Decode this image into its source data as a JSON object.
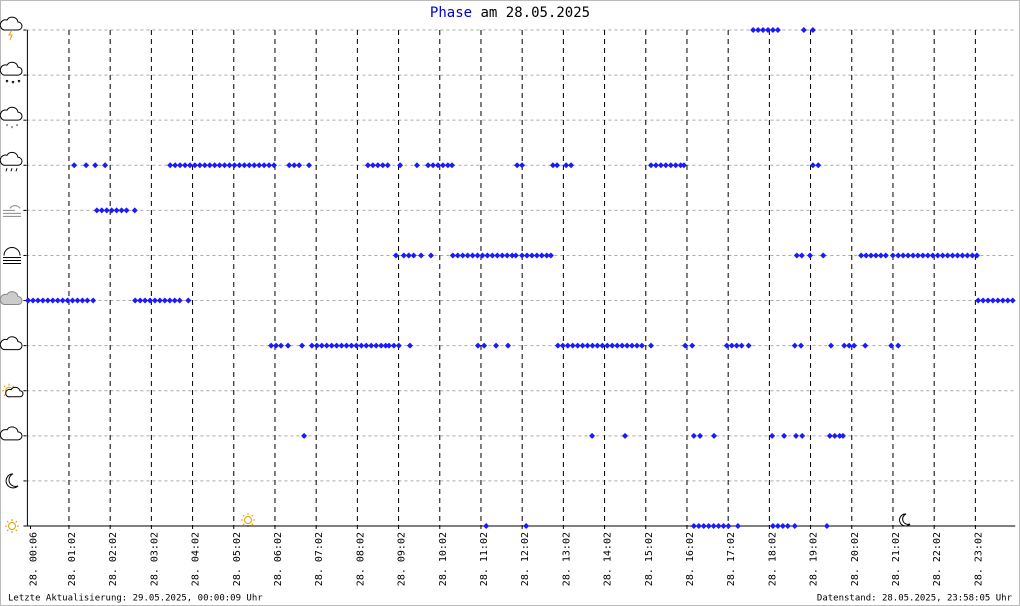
{
  "chart_data": {
    "type": "scatter",
    "title_parts": [
      "Phase",
      "am 28.05.2025"
    ],
    "footer_left": "Letzte Aktualisierung: 29.05.2025, 00:00:09 Uhr",
    "footer_right": "Datenstand: 28.05.2025, 23:58:05 Uhr",
    "xlim": [
      0,
      24
    ],
    "ylim": [
      0,
      11
    ],
    "xticks": [
      {
        "value": 0.1,
        "label": "28. 00:06"
      },
      {
        "value": 1.0333,
        "label": "28. 01:02"
      },
      {
        "value": 2.0333,
        "label": "28. 02:02"
      },
      {
        "value": 3.0333,
        "label": "28. 03:02"
      },
      {
        "value": 4.0333,
        "label": "28. 04:02"
      },
      {
        "value": 5.0333,
        "label": "28. 05:02"
      },
      {
        "value": 6.0333,
        "label": "28. 06:02"
      },
      {
        "value": 7.0333,
        "label": "28. 07:02"
      },
      {
        "value": 8.0333,
        "label": "28. 08:02"
      },
      {
        "value": 9.0333,
        "label": "28. 09:02"
      },
      {
        "value": 10.0333,
        "label": "28. 10:02"
      },
      {
        "value": 11.0333,
        "label": "28. 11:02"
      },
      {
        "value": 12.0333,
        "label": "28. 12:02"
      },
      {
        "value": 13.0333,
        "label": "28. 13:02"
      },
      {
        "value": 14.0333,
        "label": "28. 14:02"
      },
      {
        "value": 15.0333,
        "label": "28. 15:02"
      },
      {
        "value": 16.0333,
        "label": "28. 16:02"
      },
      {
        "value": 17.0333,
        "label": "28. 17:02"
      },
      {
        "value": 18.0333,
        "label": "28. 18:02"
      },
      {
        "value": 19.0333,
        "label": "28. 19:02"
      },
      {
        "value": 20.0333,
        "label": "28. 20:02"
      },
      {
        "value": 21.0333,
        "label": "28. 21:02"
      },
      {
        "value": 22.0333,
        "label": "28. 22:02"
      },
      {
        "value": 23.0333,
        "label": "28. 23:02"
      }
    ],
    "yticks": [
      0,
      1,
      2,
      3,
      4,
      5,
      6,
      7,
      8,
      9,
      10,
      11
    ],
    "grid": true,
    "color": "#1a1aff",
    "series": [
      {
        "y": 5,
        "x": [
          0.04,
          0.16,
          0.28,
          0.4,
          0.52,
          0.64,
          0.76,
          0.88,
          1.0,
          1.12,
          1.24,
          1.36,
          1.48,
          1.62,
          2.64,
          2.76,
          2.88,
          3.0,
          3.12,
          3.24,
          3.36,
          3.48,
          3.6,
          3.72,
          3.93,
          23.1,
          23.22,
          23.34,
          23.46,
          23.58,
          23.7,
          23.82,
          23.94
        ]
      },
      {
        "y": 8,
        "x": [
          1.16,
          1.45,
          1.67,
          1.91,
          3.49,
          3.61,
          3.73,
          3.85,
          3.97,
          4.09,
          4.21,
          4.33,
          4.45,
          4.57,
          4.69,
          4.81,
          4.93,
          5.05,
          5.17,
          5.29,
          5.41,
          5.53,
          5.65,
          5.77,
          5.89,
          6.01,
          6.38,
          6.5,
          6.62,
          6.86,
          8.29,
          8.41,
          8.53,
          8.65,
          8.77,
          9.07,
          9.48,
          9.75,
          9.87,
          9.99,
          10.11,
          10.23,
          10.33,
          11.91,
          12.03,
          12.78,
          12.88,
          13.1,
          13.22,
          15.16,
          15.28,
          15.4,
          15.52,
          15.64,
          15.76,
          15.88,
          15.96,
          19.09,
          19.22
        ]
      },
      {
        "y": 7,
        "x": [
          1.71,
          1.83,
          1.95,
          2.07,
          2.19,
          2.31,
          2.43,
          2.63
        ]
      },
      {
        "y": 6,
        "x": [
          8.97,
          9.16,
          9.28,
          9.4,
          9.58,
          9.82,
          10.35,
          10.47,
          10.59,
          10.71,
          10.83,
          10.95,
          11.07,
          11.19,
          11.31,
          11.43,
          11.55,
          11.67,
          11.79,
          11.88,
          12.03,
          12.15,
          12.27,
          12.39,
          12.51,
          12.63,
          12.73,
          18.7,
          18.82,
          19.02,
          19.34,
          20.26,
          20.38,
          20.5,
          20.62,
          20.74,
          20.86,
          21.03,
          21.16,
          21.28,
          21.4,
          21.52,
          21.64,
          21.76,
          21.88,
          22.0,
          22.12,
          22.24,
          22.36,
          22.48,
          22.6,
          22.72,
          22.84,
          22.96,
          23.07
        ]
      },
      {
        "y": 4,
        "x": [
          5.94,
          6.06,
          6.18,
          6.35,
          6.69,
          6.93,
          7.05,
          7.17,
          7.29,
          7.41,
          7.53,
          7.65,
          7.77,
          7.89,
          8.01,
          8.13,
          8.25,
          8.37,
          8.49,
          8.61,
          8.72,
          8.8,
          8.92,
          9.04,
          9.31,
          10.96,
          11.11,
          11.4,
          11.69,
          12.9,
          13.02,
          13.14,
          13.26,
          13.38,
          13.5,
          13.62,
          13.74,
          13.86,
          13.98,
          14.1,
          14.22,
          14.34,
          14.46,
          14.58,
          14.7,
          14.82,
          14.94,
          15.16,
          15.99,
          16.16,
          17.0,
          17.12,
          17.24,
          17.36,
          17.53,
          18.65,
          18.8,
          19.53,
          19.85,
          19.97,
          20.09,
          20.36,
          20.99,
          21.16
        ]
      },
      {
        "y": 2,
        "x": [
          6.74,
          13.73,
          14.53,
          16.2,
          16.35,
          16.69,
          18.1,
          18.39,
          18.68,
          18.83,
          19.5,
          19.62,
          19.74,
          19.82
        ]
      },
      {
        "y": 11,
        "x": [
          17.64,
          17.76,
          17.88,
          18.0,
          18.12,
          18.24,
          18.87,
          19.09
        ]
      },
      {
        "y": 0,
        "x": [
          11.16,
          12.13,
          16.2,
          16.32,
          16.44,
          16.56,
          16.68,
          16.8,
          16.92,
          17.04,
          17.27,
          18.12,
          18.24,
          18.36,
          18.48,
          18.65,
          19.43
        ]
      }
    ]
  }
}
